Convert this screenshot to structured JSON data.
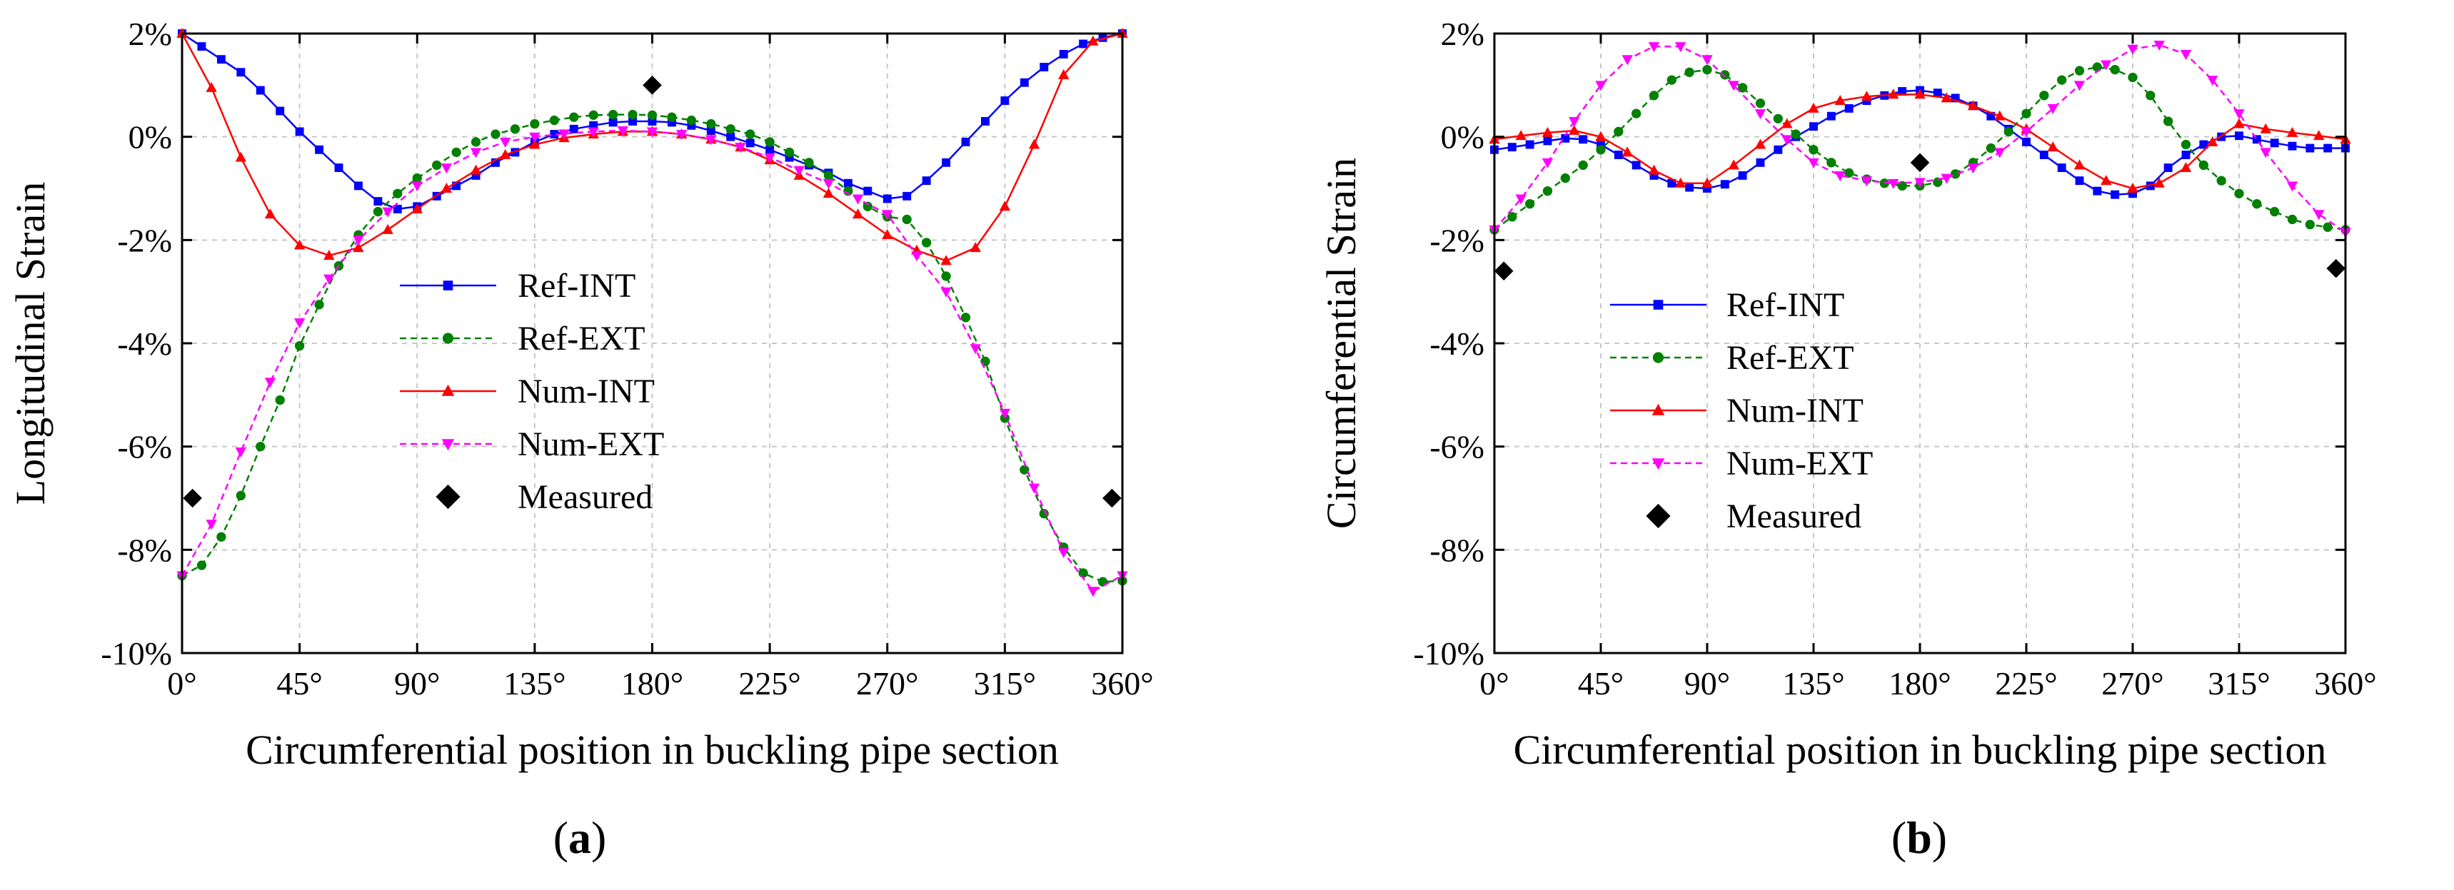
{
  "chart_data": [
    {
      "type": "line",
      "panel_label": "a",
      "xlabel": "Circumferential position in buckling pipe section",
      "ylabel": "Longitudinal Strain",
      "xlim": [
        0,
        360
      ],
      "ylim": [
        -10,
        2
      ],
      "x_ticks": [
        0,
        45,
        90,
        135,
        180,
        225,
        270,
        315,
        360
      ],
      "x_tick_labels": [
        "0°",
        "45°",
        "90°",
        "135°",
        "180°",
        "225°",
        "270°",
        "315°",
        "360°"
      ],
      "y_ticks": [
        2,
        0,
        -2,
        -4,
        -6,
        -8,
        -10
      ],
      "y_tick_labels": [
        "2%",
        "0%",
        "-2%",
        "-4%",
        "-6%",
        "-8%",
        "-10%"
      ],
      "grid": true,
      "legend_position": "center",
      "series": [
        {
          "name": "Ref-INT",
          "color": "#0000ff",
          "marker": "square",
          "dash": "solid",
          "x": [
            0,
            7.5,
            15,
            22.5,
            30,
            37.5,
            45,
            52.5,
            60,
            67.5,
            75,
            82.5,
            90,
            97.5,
            105,
            112.5,
            120,
            127.5,
            135,
            142.5,
            150,
            157.5,
            165,
            172.5,
            180,
            187.5,
            195,
            202.5,
            210,
            217.5,
            225,
            232.5,
            240,
            247.5,
            255,
            262.5,
            270,
            277.5,
            285,
            292.5,
            300,
            307.5,
            315,
            322.5,
            330,
            337.5,
            345,
            352.5,
            360
          ],
          "values": [
            2.0,
            1.75,
            1.5,
            1.25,
            0.9,
            0.5,
            0.1,
            -0.25,
            -0.6,
            -0.95,
            -1.25,
            -1.4,
            -1.35,
            -1.15,
            -0.95,
            -0.75,
            -0.5,
            -0.3,
            -0.1,
            0.05,
            0.15,
            0.22,
            0.28,
            0.3,
            0.3,
            0.28,
            0.22,
            0.12,
            0.0,
            -0.12,
            -0.25,
            -0.4,
            -0.55,
            -0.7,
            -0.9,
            -1.05,
            -1.2,
            -1.15,
            -0.85,
            -0.5,
            -0.1,
            0.3,
            0.7,
            1.05,
            1.35,
            1.6,
            1.8,
            1.92,
            2.0
          ]
        },
        {
          "name": "Ref-EXT",
          "color": "#008000",
          "marker": "circle",
          "dash": "dashed",
          "x": [
            0,
            7.5,
            15,
            22.5,
            30,
            37.5,
            45,
            52.5,
            60,
            67.5,
            75,
            82.5,
            90,
            97.5,
            105,
            112.5,
            120,
            127.5,
            135,
            142.5,
            150,
            157.5,
            165,
            172.5,
            180,
            187.5,
            195,
            202.5,
            210,
            217.5,
            225,
            232.5,
            240,
            247.5,
            255,
            262.5,
            270,
            277.5,
            285,
            292.5,
            300,
            307.5,
            315,
            322.5,
            330,
            337.5,
            345,
            352.5,
            360
          ],
          "values": [
            -8.5,
            -8.3,
            -7.75,
            -6.95,
            -6.0,
            -5.1,
            -4.05,
            -3.25,
            -2.5,
            -1.9,
            -1.45,
            -1.1,
            -0.8,
            -0.55,
            -0.3,
            -0.1,
            0.05,
            0.15,
            0.25,
            0.32,
            0.38,
            0.42,
            0.43,
            0.43,
            0.42,
            0.38,
            0.32,
            0.25,
            0.15,
            0.05,
            -0.1,
            -0.3,
            -0.5,
            -0.75,
            -1.05,
            -1.35,
            -1.55,
            -1.6,
            -2.05,
            -2.7,
            -3.5,
            -4.35,
            -5.45,
            -6.45,
            -7.3,
            -7.95,
            -8.45,
            -8.62,
            -8.6
          ]
        },
        {
          "name": "Num-INT",
          "color": "#ff0000",
          "marker": "triangle-up",
          "dash": "solid",
          "x": [
            0,
            11.25,
            22.5,
            33.75,
            45,
            56.25,
            67.5,
            78.75,
            90,
            101.25,
            112.5,
            123.75,
            135,
            146.25,
            157.5,
            168.75,
            180,
            191.25,
            202.5,
            213.75,
            225,
            236.25,
            247.5,
            258.75,
            270,
            281.25,
            292.5,
            303.75,
            315,
            326.25,
            337.5,
            348.75,
            360
          ],
          "values": [
            2.0,
            0.95,
            -0.4,
            -1.5,
            -2.1,
            -2.3,
            -2.15,
            -1.8,
            -1.4,
            -1.0,
            -0.65,
            -0.35,
            -0.15,
            -0.02,
            0.05,
            0.1,
            0.1,
            0.05,
            -0.05,
            -0.2,
            -0.45,
            -0.75,
            -1.1,
            -1.5,
            -1.9,
            -2.2,
            -2.4,
            -2.15,
            -1.35,
            -0.15,
            1.2,
            1.85,
            2.0
          ]
        },
        {
          "name": "Num-EXT",
          "color": "#ff00ff",
          "marker": "triangle-down",
          "dash": "dashed",
          "x": [
            0,
            11.25,
            22.5,
            33.75,
            45,
            56.25,
            67.5,
            78.75,
            90,
            101.25,
            112.5,
            123.75,
            135,
            146.25,
            157.5,
            168.75,
            180,
            191.25,
            202.5,
            213.75,
            225,
            236.25,
            247.5,
            258.75,
            270,
            281.25,
            292.5,
            303.75,
            315,
            326.25,
            337.5,
            348.75,
            360
          ],
          "values": [
            -8.5,
            -7.5,
            -6.1,
            -4.75,
            -3.6,
            -2.75,
            -2.0,
            -1.45,
            -0.95,
            -0.6,
            -0.3,
            -0.1,
            0.0,
            0.06,
            0.1,
            0.12,
            0.1,
            0.05,
            -0.05,
            -0.2,
            -0.4,
            -0.65,
            -0.9,
            -1.2,
            -1.5,
            -2.3,
            -3.0,
            -4.1,
            -5.35,
            -6.8,
            -8.05,
            -8.8,
            -8.5
          ]
        },
        {
          "name": "Measured",
          "color": "#000000",
          "marker": "diamond",
          "dash": "none",
          "x": [
            4,
            180,
            356
          ],
          "values": [
            -7.0,
            1.0,
            -7.0
          ]
        }
      ]
    },
    {
      "type": "line",
      "panel_label": "b",
      "xlabel": "Circumferential position in buckling pipe section",
      "ylabel": "Circumferential Strain",
      "xlim": [
        0,
        360
      ],
      "ylim": [
        -10,
        2
      ],
      "x_ticks": [
        0,
        45,
        90,
        135,
        180,
        225,
        270,
        315,
        360
      ],
      "x_tick_labels": [
        "0°",
        "45°",
        "90°",
        "135°",
        "180°",
        "225°",
        "270°",
        "315°",
        "360°"
      ],
      "y_ticks": [
        2,
        0,
        -2,
        -4,
        -6,
        -8,
        -10
      ],
      "y_tick_labels": [
        "2%",
        "0%",
        "-2%",
        "-4%",
        "-6%",
        "-8%",
        "-10%"
      ],
      "grid": true,
      "legend_position": "center-left",
      "series": [
        {
          "name": "Ref-INT",
          "color": "#0000ff",
          "marker": "square",
          "dash": "solid",
          "x": [
            0,
            7.5,
            15,
            22.5,
            30,
            37.5,
            45,
            52.5,
            60,
            67.5,
            75,
            82.5,
            90,
            97.5,
            105,
            112.5,
            120,
            127.5,
            135,
            142.5,
            150,
            157.5,
            165,
            172.5,
            180,
            187.5,
            195,
            202.5,
            210,
            217.5,
            225,
            232.5,
            240,
            247.5,
            255,
            262.5,
            270,
            277.5,
            285,
            292.5,
            300,
            307.5,
            315,
            322.5,
            330,
            337.5,
            345,
            352.5,
            360
          ],
          "values": [
            -0.25,
            -0.2,
            -0.15,
            -0.08,
            -0.03,
            -0.05,
            -0.15,
            -0.35,
            -0.55,
            -0.75,
            -0.9,
            -0.98,
            -1.0,
            -0.92,
            -0.75,
            -0.5,
            -0.25,
            0.0,
            0.2,
            0.4,
            0.55,
            0.7,
            0.8,
            0.88,
            0.9,
            0.85,
            0.75,
            0.6,
            0.4,
            0.15,
            -0.1,
            -0.35,
            -0.6,
            -0.85,
            -1.05,
            -1.12,
            -1.1,
            -0.95,
            -0.6,
            -0.35,
            -0.15,
            0.0,
            0.02,
            -0.05,
            -0.12,
            -0.18,
            -0.22,
            -0.22,
            -0.22
          ]
        },
        {
          "name": "Ref-EXT",
          "color": "#008000",
          "marker": "circle",
          "dash": "dashed",
          "x": [
            0,
            7.5,
            15,
            22.5,
            30,
            37.5,
            45,
            52.5,
            60,
            67.5,
            75,
            82.5,
            90,
            97.5,
            105,
            112.5,
            120,
            127.5,
            135,
            142.5,
            150,
            157.5,
            165,
            172.5,
            180,
            187.5,
            195,
            202.5,
            210,
            217.5,
            225,
            232.5,
            240,
            247.5,
            255,
            262.5,
            270,
            277.5,
            285,
            292.5,
            300,
            307.5,
            315,
            322.5,
            330,
            337.5,
            345,
            352.5,
            360
          ],
          "values": [
            -1.8,
            -1.55,
            -1.3,
            -1.05,
            -0.8,
            -0.55,
            -0.25,
            0.1,
            0.45,
            0.8,
            1.1,
            1.25,
            1.3,
            1.2,
            0.95,
            0.65,
            0.35,
            0.05,
            -0.25,
            -0.5,
            -0.7,
            -0.82,
            -0.9,
            -0.95,
            -0.95,
            -0.88,
            -0.72,
            -0.5,
            -0.22,
            0.1,
            0.45,
            0.8,
            1.1,
            1.28,
            1.35,
            1.3,
            1.15,
            0.8,
            0.3,
            -0.15,
            -0.55,
            -0.85,
            -1.1,
            -1.3,
            -1.45,
            -1.6,
            -1.7,
            -1.75,
            -1.8
          ]
        },
        {
          "name": "Num-INT",
          "color": "#ff0000",
          "marker": "triangle-up",
          "dash": "solid",
          "x": [
            0,
            11.25,
            22.5,
            33.75,
            45,
            56.25,
            67.5,
            78.75,
            90,
            101.25,
            112.5,
            123.75,
            135,
            146.25,
            157.5,
            168.75,
            180,
            191.25,
            202.5,
            213.75,
            225,
            236.25,
            247.5,
            258.75,
            270,
            281.25,
            292.5,
            303.75,
            315,
            326.25,
            337.5,
            348.75,
            360
          ],
          "values": [
            -0.05,
            0.02,
            0.08,
            0.12,
            0.0,
            -0.3,
            -0.65,
            -0.9,
            -0.9,
            -0.55,
            -0.15,
            0.25,
            0.55,
            0.7,
            0.78,
            0.82,
            0.82,
            0.75,
            0.6,
            0.4,
            0.15,
            -0.2,
            -0.55,
            -0.85,
            -1.0,
            -0.9,
            -0.6,
            -0.1,
            0.25,
            0.15,
            0.08,
            0.02,
            -0.05
          ]
        },
        {
          "name": "Num-EXT",
          "color": "#ff00ff",
          "marker": "triangle-down",
          "dash": "dashed",
          "x": [
            0,
            11.25,
            22.5,
            33.75,
            45,
            56.25,
            67.5,
            78.75,
            90,
            101.25,
            112.5,
            123.75,
            135,
            146.25,
            157.5,
            168.75,
            180,
            191.25,
            202.5,
            213.75,
            225,
            236.25,
            247.5,
            258.75,
            270,
            281.25,
            292.5,
            303.75,
            315,
            326.25,
            337.5,
            348.75,
            360
          ],
          "values": [
            -1.8,
            -1.2,
            -0.5,
            0.3,
            1.0,
            1.5,
            1.75,
            1.75,
            1.5,
            1.0,
            0.45,
            -0.05,
            -0.5,
            -0.75,
            -0.85,
            -0.9,
            -0.88,
            -0.8,
            -0.6,
            -0.3,
            0.1,
            0.55,
            1.0,
            1.4,
            1.7,
            1.78,
            1.6,
            1.1,
            0.45,
            -0.3,
            -0.95,
            -1.5,
            -1.85
          ]
        },
        {
          "name": "Measured",
          "color": "#000000",
          "marker": "diamond",
          "dash": "none",
          "x": [
            4,
            180,
            356
          ],
          "values": [
            -2.6,
            -0.5,
            -2.55
          ]
        }
      ]
    }
  ]
}
